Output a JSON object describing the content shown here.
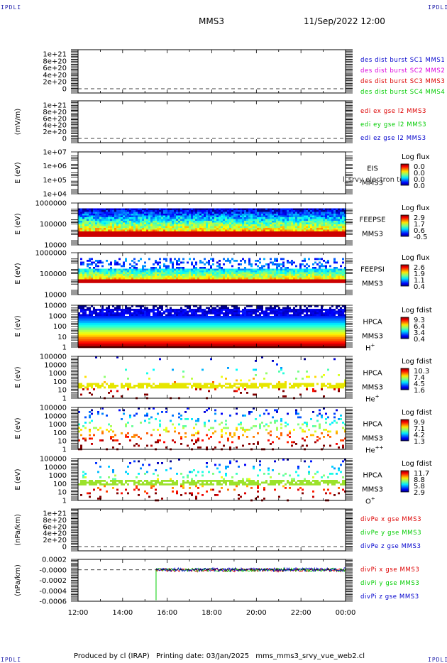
{
  "header": {
    "corner_tl": "IPDLI",
    "corner_tr": "IPDLI",
    "corner_bl": "IPDLI",
    "corner_br": "IPDLI",
    "spacecraft": "MMS3",
    "datetime": "11/Sep/2022 12:00"
  },
  "footer": {
    "produced_by": "Produced by cl (IRAP)",
    "printing_date": "Printing date: 03/Jan/2025",
    "file": "mms_mms3_srvy_vue_web2.cl"
  },
  "colors": {
    "blue": "#0000cc",
    "magenta": "#dd00dd",
    "red": "#dd0000",
    "green": "#00cc00"
  },
  "chart_data": {
    "type": "multi-panel time series",
    "x_ticks": [
      "12:00",
      "14:00",
      "16:00",
      "18:00",
      "20:00",
      "22:00",
      "00:00"
    ],
    "panels": [
      {
        "id": "des_dist",
        "kind": "line",
        "ylabel": "",
        "yticks": [
          "1e+21",
          "8e+20",
          "6e+20",
          "4e+20",
          "2e+20",
          "0"
        ],
        "legend": [
          {
            "label": "des dist burst SC1 MMS1",
            "color": "#0000cc"
          },
          {
            "label": "des dist burst SC2 MMS2",
            "color": "#dd00dd"
          },
          {
            "label": "des dist burst SC3 MMS3",
            "color": "#dd0000"
          },
          {
            "label": "des dist burst SC4 MMS4",
            "color": "#00cc00"
          }
        ]
      },
      {
        "id": "edi",
        "kind": "line",
        "ylabel": "(mV/m)",
        "yticks": [
          "1e+21",
          "8e+20",
          "6e+20",
          "4e+20",
          "2e+20",
          "0"
        ],
        "legend": [
          {
            "label": "edi ex gse l2 MMS3",
            "color": "#dd0000"
          },
          {
            "label": "edi ey gse l2 MMS3",
            "color": "#00cc00"
          },
          {
            "label": "edi ez gse l2 MMS3",
            "color": "#0000cc"
          }
        ]
      },
      {
        "id": "eis",
        "kind": "spectrogram",
        "ylabel": "E (eV)",
        "yticks": [
          "1e+07",
          "1e+06",
          "1e+05",
          "1e+04"
        ],
        "inst": [
          "EIS",
          "MMS3"
        ],
        "overlay": "l_srvy electron tof",
        "cbar_title": "Log flux",
        "cbar_ticks": [
          "0.0",
          "0.0",
          "0.0",
          "0.0"
        ],
        "values": [
          0.0,
          0.0,
          0.0,
          0.0
        ]
      },
      {
        "id": "feepse",
        "kind": "spectrogram",
        "ylabel": "E (eV)",
        "yticks": [
          "1000000",
          "100000",
          "10000"
        ],
        "inst": [
          "FEEPSE",
          "MMS3"
        ],
        "cbar_title": "Log flux",
        "cbar_ticks": [
          "2.9",
          "1.7",
          "0.6",
          "-0.5"
        ]
      },
      {
        "id": "feepsi",
        "kind": "spectrogram",
        "ylabel": "E (eV)",
        "yticks": [
          "1000000",
          "100000",
          "10000"
        ],
        "inst": [
          "FEEPSI",
          "MMS3"
        ],
        "cbar_title": "Log flux",
        "cbar_ticks": [
          "2.6",
          "1.9",
          "1.1",
          "0.4"
        ]
      },
      {
        "id": "hpca_h",
        "kind": "spectrogram",
        "ylabel": "E (eV)",
        "yticks": [
          "10000",
          "1000",
          "100",
          "10",
          "1"
        ],
        "inst": [
          "HPCA",
          "MMS3"
        ],
        "species": "H",
        "species_sup": "+",
        "cbar_title": "Log fdist",
        "cbar_ticks": [
          "9.3",
          "6.4",
          "3.4",
          "0.4"
        ]
      },
      {
        "id": "hpca_he1",
        "kind": "spectrogram",
        "ylabel": "E (eV)",
        "yticks": [
          "100000",
          "10000",
          "1000",
          "100",
          "10",
          "1"
        ],
        "inst": [
          "HPCA",
          "MMS3"
        ],
        "species": "He",
        "species_sup": "+",
        "cbar_title": "Log fdist",
        "cbar_ticks": [
          "10.3",
          "7.4",
          "4.5",
          "1.6"
        ]
      },
      {
        "id": "hpca_he2",
        "kind": "spectrogram",
        "ylabel": "E (eV)",
        "yticks": [
          "100000",
          "10000",
          "1000",
          "100",
          "10",
          "1"
        ],
        "inst": [
          "HPCA",
          "MMS3"
        ],
        "species": "He",
        "species_sup": "++",
        "cbar_title": "Log fdist",
        "cbar_ticks": [
          "9.9",
          "7.1",
          "4.2",
          "1.3"
        ]
      },
      {
        "id": "hpca_o",
        "kind": "spectrogram",
        "ylabel": "E (eV)",
        "yticks": [
          "100000",
          "10000",
          "1000",
          "100",
          "10",
          "1"
        ],
        "inst": [
          "HPCA",
          "MMS3"
        ],
        "species": "O",
        "species_sup": "+",
        "cbar_title": "Log fdist",
        "cbar_ticks": [
          "11.7",
          "8.8",
          "5.8",
          "2.9"
        ]
      },
      {
        "id": "divpe",
        "kind": "line",
        "ylabel": "(nPa/km)",
        "yticks": [
          "1e+21",
          "8e+20",
          "6e+20",
          "4e+20",
          "2e+20",
          "0"
        ],
        "legend": [
          {
            "label": "divPe x gse MMS3",
            "color": "#dd0000"
          },
          {
            "label": "divPe y gse MMS3",
            "color": "#00cc00"
          },
          {
            "label": "divPe z gse MMS3",
            "color": "#0000cc"
          }
        ]
      },
      {
        "id": "divpi",
        "kind": "line",
        "ylabel": "(nPa/km)",
        "yticks": [
          "0.0002",
          "-0.0000",
          "-0.0002",
          "-0.0004",
          "-0.0006"
        ],
        "ylim": [
          -0.0006,
          0.0002
        ],
        "data_start": "15:30",
        "legend": [
          {
            "label": "divPi x gse MMS3",
            "color": "#dd0000"
          },
          {
            "label": "divPi y gse MMS3",
            "color": "#00cc00"
          },
          {
            "label": "divPi z gse MMS3",
            "color": "#0000cc"
          }
        ]
      }
    ]
  }
}
